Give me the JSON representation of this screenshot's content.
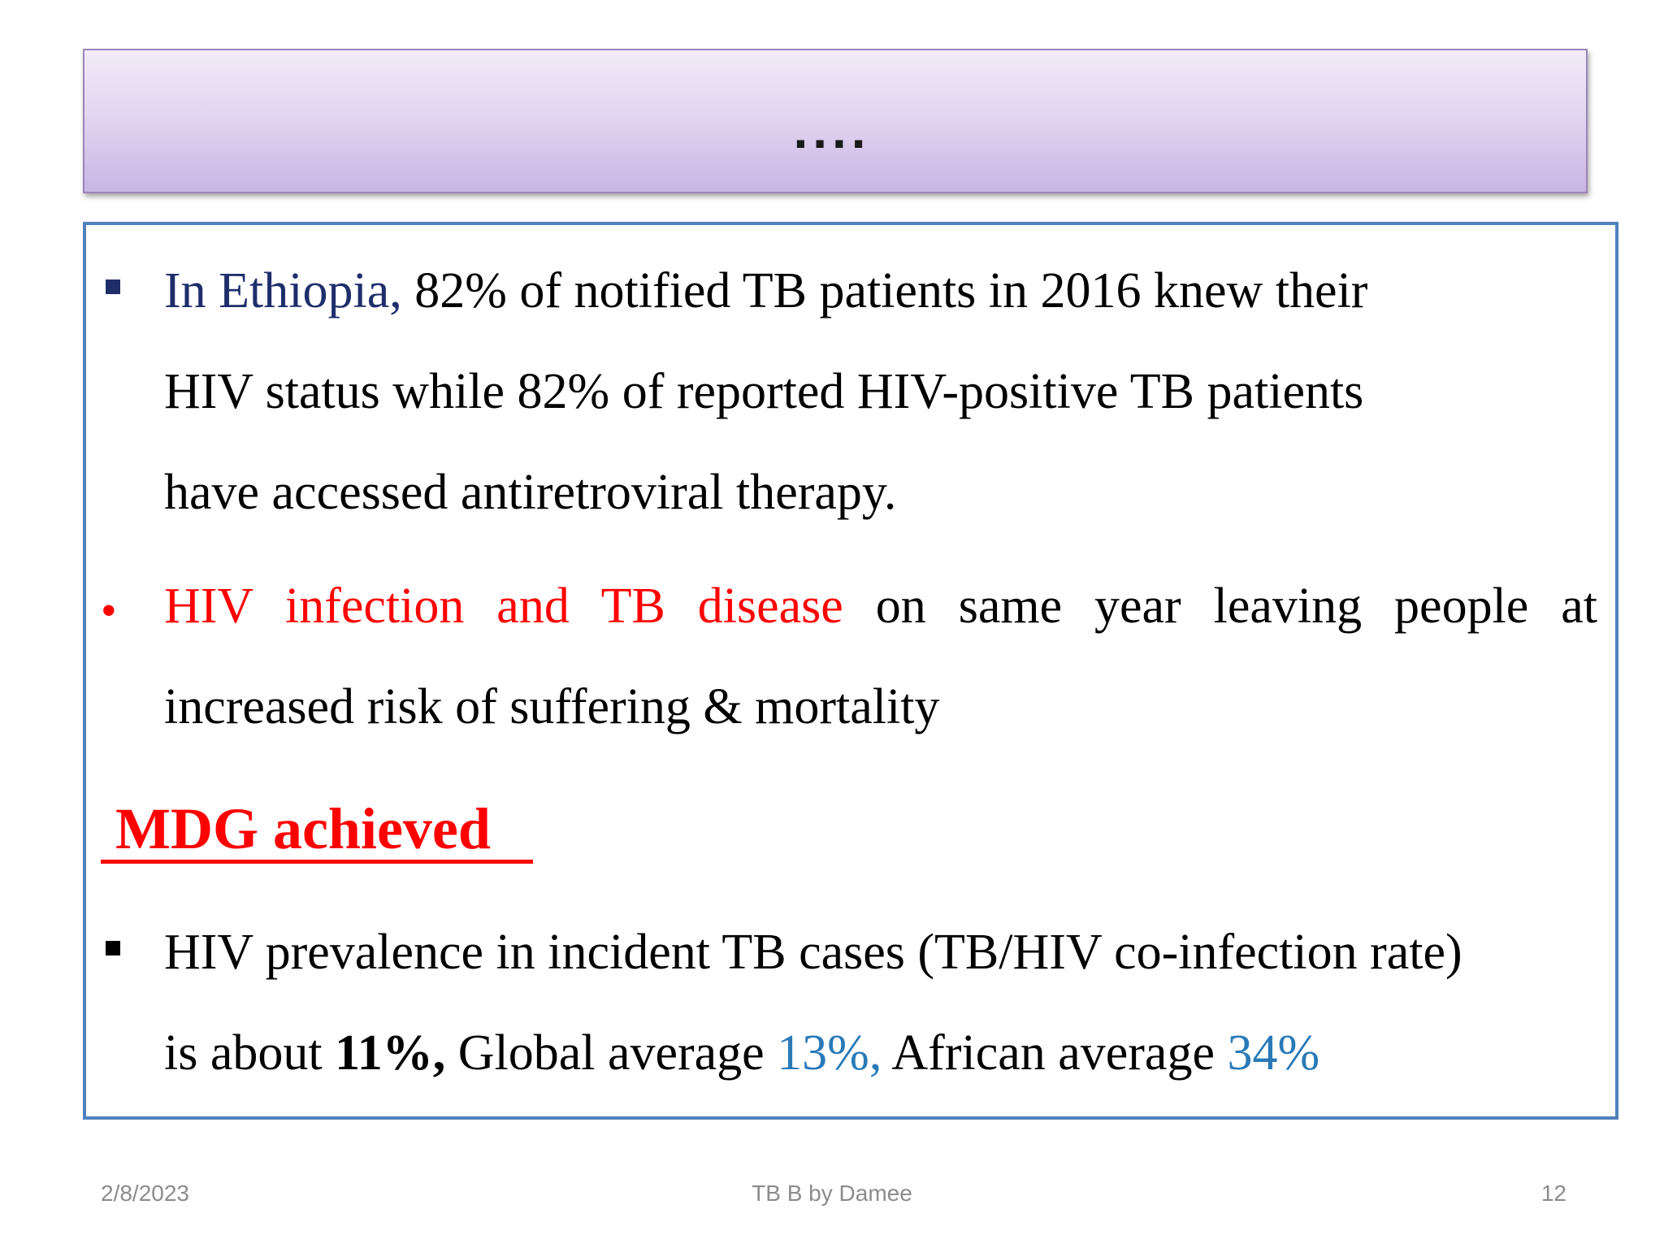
{
  "slide": {
    "title": "....",
    "bullet1": {
      "highlight": "In Ethiopia,",
      "line1": " 82% of notified TB patients in 2016 knew their",
      "line2": "HIV status while 82% of reported HIV-positive TB patients",
      "line3": "have accessed antiretroviral therapy."
    },
    "bullet2": {
      "marker": "•",
      "highlight": "HIV infection and TB disease",
      "rest": " on same year leaving people at increased risk of suffering & mortality"
    },
    "heading": "MDG achieved",
    "bullet3": {
      "line1": "HIV prevalence in incident TB cases (TB/HIV co-infection rate)",
      "prefix": "is about ",
      "local_rate": "11%,",
      "global_label": " Global average ",
      "global_rate": "13%,",
      "african_label": " African average ",
      "african_rate": "34%"
    },
    "colors": {
      "title_gradient_top": "#f1ebf8",
      "title_gradient_bottom": "#c9b5e4",
      "content_border": "#4f81bd",
      "navy_text": "#1f2e6b",
      "red_text": "#ff0000",
      "blue_text": "#2a7ab8"
    }
  },
  "footer": {
    "date": "2/8/2023",
    "center": "TB B by Damee",
    "page_number": "12"
  }
}
